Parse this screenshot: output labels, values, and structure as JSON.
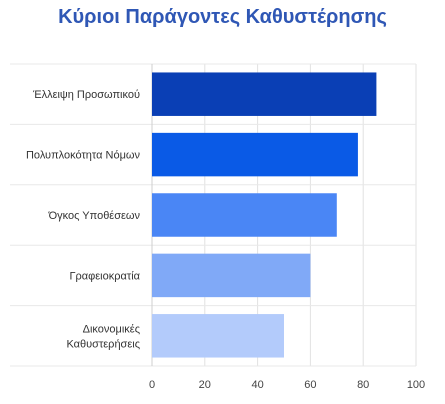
{
  "title": "Κύριοι Παράγοντες Καθυστέρησης",
  "chart_data": {
    "type": "bar",
    "orientation": "horizontal",
    "title": "Κύριοι Παράγοντες Καθυστέρησης",
    "categories": [
      [
        "Έλλειψη Προσωπικού"
      ],
      [
        "Πολυπλοκότητα Νόμων"
      ],
      [
        "Όγκος Υποθέσεων"
      ],
      [
        "Γραφειοκρατία"
      ],
      [
        "Δικονομικές",
        "Καθυστερήσεις"
      ]
    ],
    "values": [
      85,
      78,
      70,
      60,
      50
    ],
    "bar_colors": [
      "#0a3fb5",
      "#0a5ae6",
      "#4a86f5",
      "#80a9f7",
      "#b3cbfb"
    ],
    "xlim": [
      0,
      100
    ],
    "x_ticks": [
      0,
      20,
      40,
      60,
      80,
      100
    ],
    "xlabel": "",
    "ylabel": "",
    "grid": true,
    "legend": "none"
  }
}
